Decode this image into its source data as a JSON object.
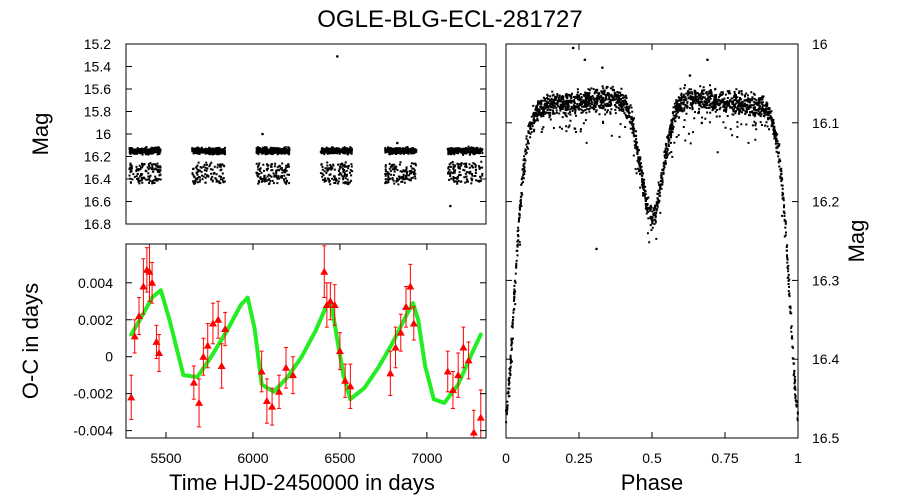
{
  "chart_data": [
    {
      "panel": "light-curve-time",
      "type": "scatter",
      "title": "OGLE-BLG-ECL-281727",
      "xlabel": "",
      "ylabel": "Mag",
      "xlim": [
        5270,
        7340
      ],
      "ylim": [
        16.8,
        15.2
      ],
      "y_inverted": true,
      "yticks": [
        "15.2",
        "15.4",
        "15.6",
        "15.8",
        "16",
        "16.2",
        "16.4",
        "16.6",
        "16.8"
      ],
      "y_tick_values": [
        15.2,
        15.4,
        15.6,
        15.8,
        16.0,
        16.2,
        16.4,
        16.6,
        16.8
      ],
      "marker": "black dots",
      "seasons": [
        {
          "start": 5290,
          "end": 5470
        },
        {
          "start": 5650,
          "end": 5840
        },
        {
          "start": 6020,
          "end": 6210
        },
        {
          "start": 6390,
          "end": 6570
        },
        {
          "start": 6760,
          "end": 6940
        },
        {
          "start": 7120,
          "end": 7320
        }
      ],
      "band_bright": 16.15,
      "band_faint": 16.45,
      "outliers": [
        {
          "x": 6485,
          "y": 15.31
        },
        {
          "x": 7135,
          "y": 16.64
        },
        {
          "x": 6055,
          "y": 16.0
        },
        {
          "x": 6830,
          "y": 16.08
        }
      ]
    },
    {
      "panel": "o-c-diagram",
      "type": "scatter",
      "title": "",
      "xlabel": "Time HJD-2450000 in days",
      "ylabel": "O-C in days",
      "xlim": [
        5270,
        7340
      ],
      "ylim": [
        -0.0044,
        0.0061
      ],
      "xticks": [
        "5500",
        "6000",
        "6500",
        "7000"
      ],
      "x_tick_values": [
        5500,
        6000,
        6500,
        7000
      ],
      "yticks": [
        "0.004",
        "0.002",
        "0",
        "-0.002",
        "-0.004"
      ],
      "y_tick_values": [
        0.004,
        0.002,
        0,
        -0.002,
        -0.004
      ],
      "series": [
        {
          "name": "O-C measurements",
          "style": "red triangles with error bars",
          "color": "#ff0000",
          "points": [
            {
              "x": 5300,
              "y": -0.0022,
              "err": 0.0012
            },
            {
              "x": 5320,
              "y": 0.0011,
              "err": 0.0009
            },
            {
              "x": 5345,
              "y": 0.0022,
              "err": 0.001
            },
            {
              "x": 5370,
              "y": 0.0038,
              "err": 0.0015
            },
            {
              "x": 5390,
              "y": 0.0047,
              "err": 0.0012
            },
            {
              "x": 5405,
              "y": 0.0046,
              "err": 0.0016
            },
            {
              "x": 5420,
              "y": 0.004,
              "err": 0.0011
            },
            {
              "x": 5445,
              "y": 0.0008,
              "err": 0.0009
            },
            {
              "x": 5460,
              "y": 0.0002,
              "err": 0.001
            },
            {
              "x": 5660,
              "y": -0.0014,
              "err": 0.0009
            },
            {
              "x": 5690,
              "y": -0.0025,
              "err": 0.0013
            },
            {
              "x": 5715,
              "y": 0.0,
              "err": 0.001
            },
            {
              "x": 5740,
              "y": 0.0006,
              "err": 0.0012
            },
            {
              "x": 5770,
              "y": 0.0018,
              "err": 0.0011
            },
            {
              "x": 5800,
              "y": 0.002,
              "err": 0.001
            },
            {
              "x": 5820,
              "y": -0.0005,
              "err": 0.0012
            },
            {
              "x": 5840,
              "y": 0.0015,
              "err": 0.0009
            },
            {
              "x": 6050,
              "y": -0.0008,
              "err": 0.0011
            },
            {
              "x": 6080,
              "y": -0.0024,
              "err": 0.0012
            },
            {
              "x": 6110,
              "y": -0.0027,
              "err": 0.001
            },
            {
              "x": 6150,
              "y": -0.0019,
              "err": 0.0009
            },
            {
              "x": 6190,
              "y": -0.0006,
              "err": 0.0011
            },
            {
              "x": 6230,
              "y": -0.001,
              "err": 0.001
            },
            {
              "x": 6410,
              "y": 0.0046,
              "err": 0.0014
            },
            {
              "x": 6425,
              "y": 0.0028,
              "err": 0.0012
            },
            {
              "x": 6445,
              "y": 0.003,
              "err": 0.001
            },
            {
              "x": 6470,
              "y": 0.0028,
              "err": 0.0011
            },
            {
              "x": 6500,
              "y": 0.0003,
              "err": 0.001
            },
            {
              "x": 6530,
              "y": -0.0013,
              "err": 0.0009
            },
            {
              "x": 6560,
              "y": -0.0016,
              "err": 0.0012
            },
            {
              "x": 6790,
              "y": -0.0009,
              "err": 0.0012
            },
            {
              "x": 6820,
              "y": 0.0005,
              "err": 0.0011
            },
            {
              "x": 6850,
              "y": 0.0013,
              "err": 0.001
            },
            {
              "x": 6880,
              "y": 0.0027,
              "err": 0.0011
            },
            {
              "x": 6905,
              "y": 0.0038,
              "err": 0.0012
            },
            {
              "x": 6925,
              "y": 0.0018,
              "err": 0.0009
            },
            {
              "x": 7120,
              "y": -0.0008,
              "err": 0.0011
            },
            {
              "x": 7150,
              "y": -0.0018,
              "err": 0.001
            },
            {
              "x": 7180,
              "y": -0.001,
              "err": 0.0012
            },
            {
              "x": 7210,
              "y": 0.0005,
              "err": 0.0011
            },
            {
              "x": 7240,
              "y": -0.0002,
              "err": 0.001
            },
            {
              "x": 7270,
              "y": -0.0041,
              "err": 0.0012
            },
            {
              "x": 7310,
              "y": -0.0033,
              "err": 0.0015
            }
          ]
        },
        {
          "name": "model fit",
          "style": "green thick line",
          "color": "#22ee22",
          "x": [
            5300,
            5350,
            5420,
            5470,
            5520,
            5600,
            5680,
            5760,
            5850,
            5930,
            5970,
            6010,
            6050,
            6120,
            6200,
            6280,
            6360,
            6420,
            6450,
            6480,
            6520,
            6560,
            6640,
            6720,
            6800,
            6880,
            6920,
            6950,
            6990,
            7040,
            7100,
            7180,
            7260,
            7310
          ],
          "y": [
            0.0012,
            0.002,
            0.0032,
            0.0036,
            0.002,
            -0.001,
            -0.0011,
            0.0,
            0.0014,
            0.0028,
            0.0032,
            0.0015,
            -0.0015,
            -0.0019,
            -0.0011,
            0.0,
            0.0014,
            0.0027,
            0.0029,
            0.0012,
            -0.001,
            -0.0023,
            -0.0017,
            -0.0006,
            0.0007,
            0.0022,
            0.0029,
            0.002,
            -0.0005,
            -0.0023,
            -0.0025,
            -0.0015,
            0.0002,
            0.0012
          ]
        }
      ]
    },
    {
      "panel": "phased-light-curve",
      "type": "scatter",
      "title": "",
      "xlabel": "Phase",
      "ylabel": "Mag",
      "y_axis_side": "right",
      "xlim": [
        0,
        1
      ],
      "ylim": [
        16.5,
        16.0
      ],
      "y_inverted": true,
      "xticks": [
        "0",
        "0.25",
        "0.5",
        "0.75",
        "1"
      ],
      "x_tick_values": [
        0,
        0.25,
        0.5,
        0.75,
        1
      ],
      "yticks": [
        "16",
        "16.1",
        "16.2",
        "16.3",
        "16.4",
        "16.5"
      ],
      "y_tick_values": [
        16.0,
        16.1,
        16.2,
        16.3,
        16.4,
        16.5
      ],
      "marker": "black dots",
      "max_light_mag": 16.07,
      "primary_min_mag": 16.46,
      "secondary_min_mag": 16.22,
      "secondary_min_phase": 0.5,
      "outliers": [
        {
          "x": 0.23,
          "y": 16.005
        },
        {
          "x": 0.27,
          "y": 16.02
        },
        {
          "x": 0.33,
          "y": 16.03
        },
        {
          "x": 0.31,
          "y": 16.26
        },
        {
          "x": 0.63,
          "y": 16.04
        },
        {
          "x": 0.69,
          "y": 16.02
        }
      ]
    }
  ]
}
